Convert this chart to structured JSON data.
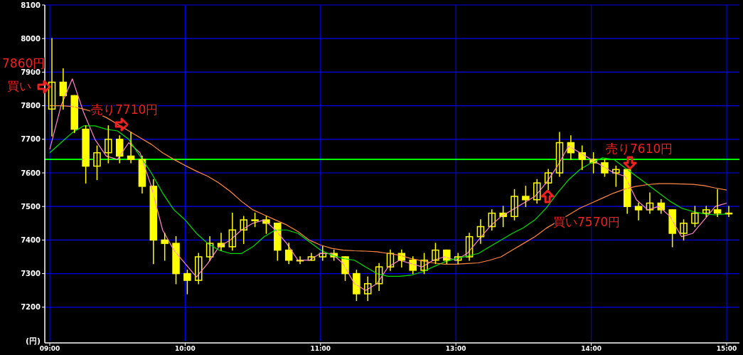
{
  "chart_data": {
    "type": "candlestick",
    "color": "#ffff00",
    "categories": [
      "09:00",
      null,
      null,
      null,
      null,
      null,
      null,
      null,
      null,
      null,
      null,
      null,
      "10:00",
      null,
      null,
      null,
      null,
      null,
      null,
      null,
      null,
      null,
      null,
      null,
      "11:00",
      null,
      null,
      null,
      null,
      null,
      null,
      null,
      null,
      null,
      null,
      null,
      "13:00",
      null,
      null,
      null,
      null,
      null,
      null,
      null,
      null,
      null,
      null,
      null,
      "14:00",
      null,
      null,
      null,
      null,
      null,
      null,
      null,
      null,
      null,
      null,
      null,
      "15:00"
    ],
    "ohlc": [
      [
        7790,
        8000,
        7710,
        7870
      ],
      [
        7870,
        7910,
        7790,
        7830
      ],
      [
        7830,
        7830,
        7720,
        7730
      ],
      [
        7730,
        7740,
        7570,
        7620
      ],
      [
        7620,
        7680,
        7580,
        7660
      ],
      [
        7660,
        7740,
        7630,
        7700
      ],
      [
        7700,
        7710,
        7630,
        7650
      ],
      [
        7650,
        7720,
        7630,
        7640
      ],
      [
        7640,
        7650,
        7540,
        7560
      ],
      [
        7560,
        7580,
        7330,
        7400
      ],
      [
        7400,
        7420,
        7340,
        7390
      ],
      [
        7390,
        7410,
        7270,
        7300
      ],
      [
        7300,
        7310,
        7240,
        7280
      ],
      [
        7280,
        7360,
        7270,
        7350
      ],
      [
        7350,
        7410,
        7340,
        7390
      ],
      [
        7390,
        7420,
        7370,
        7380
      ],
      [
        7380,
        7480,
        7370,
        7430
      ],
      [
        7430,
        7470,
        7390,
        7460
      ],
      [
        7460,
        7480,
        7440,
        7460
      ],
      [
        7460,
        7470,
        7420,
        7450
      ],
      [
        7450,
        7450,
        7340,
        7370
      ],
      [
        7370,
        7390,
        7330,
        7340
      ],
      [
        7340,
        7350,
        7330,
        7340
      ],
      [
        7340,
        7360,
        7340,
        7350
      ],
      [
        7350,
        7380,
        7340,
        7360
      ],
      [
        7360,
        7370,
        7340,
        7350
      ],
      [
        7350,
        7350,
        7280,
        7300
      ],
      [
        7300,
        7310,
        7220,
        7240
      ],
      [
        7240,
        7290,
        7220,
        7270
      ],
      [
        7270,
        7330,
        7250,
        7320
      ],
      [
        7320,
        7370,
        7310,
        7360
      ],
      [
        7360,
        7370,
        7320,
        7340
      ],
      [
        7340,
        7350,
        7300,
        7310
      ],
      [
        7310,
        7360,
        7300,
        7340
      ],
      [
        7340,
        7390,
        7330,
        7370
      ],
      [
        7370,
        7370,
        7330,
        7340
      ],
      [
        7340,
        7360,
        7330,
        7350
      ],
      [
        7350,
        7420,
        7340,
        7410
      ],
      [
        7410,
        7460,
        7390,
        7440
      ],
      [
        7440,
        7490,
        7430,
        7480
      ],
      [
        7480,
        7500,
        7440,
        7470
      ],
      [
        7470,
        7550,
        7460,
        7530
      ],
      [
        7530,
        7560,
        7500,
        7520
      ],
      [
        7520,
        7580,
        7510,
        7570
      ],
      [
        7570,
        7610,
        7550,
        7600
      ],
      [
        7600,
        7720,
        7590,
        7690
      ],
      [
        7690,
        7710,
        7640,
        7660
      ],
      [
        7660,
        7680,
        7610,
        7640
      ],
      [
        7640,
        7660,
        7600,
        7630
      ],
      [
        7630,
        7640,
        7590,
        7600
      ],
      [
        7600,
        7620,
        7560,
        7610
      ],
      [
        7610,
        7610,
        7480,
        7500
      ],
      [
        7500,
        7510,
        7460,
        7490
      ],
      [
        7490,
        7540,
        7480,
        7510
      ],
      [
        7510,
        7520,
        7480,
        7490
      ],
      [
        7490,
        7490,
        7380,
        7420
      ],
      [
        7420,
        7460,
        7400,
        7450
      ],
      [
        7450,
        7500,
        7440,
        7480
      ],
      [
        7480,
        7500,
        7470,
        7490
      ],
      [
        7490,
        7550,
        7470,
        7480
      ],
      [
        7480,
        7500,
        7470,
        7480
      ]
    ],
    "series": [
      {
        "type": "line",
        "color": "#ff88cc",
        "values": [
          7670,
          7800,
          7880,
          7780,
          7700,
          7650,
          7640,
          7690,
          7660,
          7560,
          7430,
          7370,
          7330,
          7290,
          7330,
          7380,
          7400,
          7430,
          7450,
          7460,
          7430,
          7390,
          7340,
          7340,
          7360,
          7360,
          7330,
          7270,
          7250,
          7270,
          7320,
          7340,
          7330,
          7320,
          7340,
          7350,
          7340,
          7360,
          7400,
          7440,
          7470,
          7490,
          7510,
          7530,
          7570,
          7620,
          7680,
          7660,
          7640,
          7620,
          7600,
          7590,
          7520,
          7490,
          7500,
          7470,
          7410,
          7420,
          7460,
          7500,
          7510
        ]
      },
      {
        "type": "line",
        "color": "#00dd00",
        "values": [
          7660,
          7690,
          7720,
          7740,
          7740,
          7730,
          7725,
          7700,
          7650,
          7600,
          7540,
          7490,
          7460,
          7420,
          7390,
          7370,
          7360,
          7360,
          7380,
          7410,
          7430,
          7430,
          7420,
          7395,
          7370,
          7355,
          7345,
          7340,
          7320,
          7300,
          7292,
          7292,
          7295,
          7305,
          7320,
          7335,
          7345,
          7352,
          7360,
          7380,
          7400,
          7420,
          7437,
          7460,
          7495,
          7540,
          7580,
          7610,
          7630,
          7645,
          7640,
          7615,
          7590,
          7565,
          7540,
          7515,
          7495,
          7485,
          7478,
          7475,
          7478
        ]
      },
      {
        "type": "line",
        "color": "#ff8844",
        "values": [
          7800,
          7800,
          7798,
          7790,
          7780,
          7765,
          7745,
          7725,
          7705,
          7685,
          7660,
          7640,
          7622,
          7605,
          7590,
          7570,
          7545,
          7515,
          7490,
          7475,
          7460,
          7445,
          7425,
          7400,
          7385,
          7375,
          7370,
          7368,
          7367,
          7365,
          7360,
          7355,
          7345,
          7338,
          7332,
          7328,
          7328,
          7330,
          7332,
          7340,
          7350,
          7370,
          7390,
          7410,
          7435,
          7455,
          7475,
          7495,
          7510,
          7525,
          7540,
          7552,
          7560,
          7565,
          7568,
          7568,
          7567,
          7566,
          7562,
          7555,
          7549
        ]
      }
    ],
    "ylim": [
      7100,
      8100
    ],
    "yticks": [
      7200,
      7300,
      7400,
      7500,
      7600,
      7700,
      7800,
      7900,
      8000,
      8100
    ],
    "ylabel": "(円)",
    "grid": true,
    "ref_lines": [
      {
        "axis": "y",
        "value": 7640,
        "color": "#00ff00"
      }
    ],
    "annotations": [
      "7860円",
      "買い",
      "売り7710円",
      "買い7570円",
      "売り7610円"
    ]
  }
}
